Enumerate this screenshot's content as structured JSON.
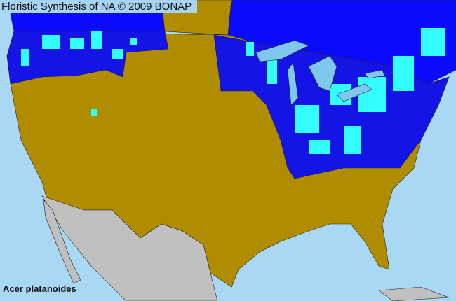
{
  "header": {
    "title": "Floristic Synthesis of NA © 2009 BONAP"
  },
  "map": {
    "species": "Acer platanoides",
    "colors": {
      "ocean": "#a8d8f4",
      "present_native_or_state": "#1414e6",
      "present_county": "#33ffff",
      "absent": "#b08c00",
      "not_in_scope": "#c0c0c0",
      "canada_present": "#0a0aff",
      "lakes": "#7ec8f0"
    }
  }
}
